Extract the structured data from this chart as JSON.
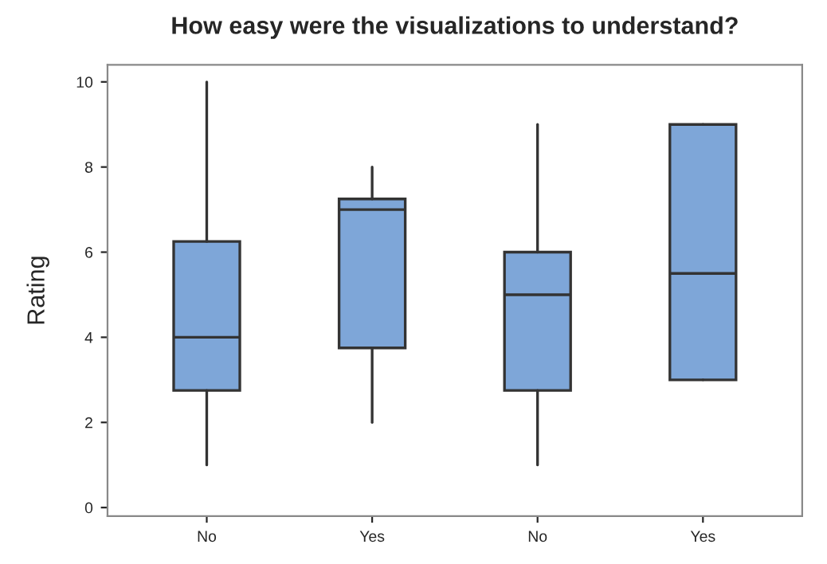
{
  "chart_data": {
    "type": "box",
    "title": "How easy were the visualizations to understand?",
    "ylabel": "Rating",
    "categories": [
      "No",
      "Yes",
      "No",
      "Yes"
    ],
    "boxes": [
      {
        "low": 1,
        "q1": 2.75,
        "median": 4,
        "q3": 6.25,
        "high": 10
      },
      {
        "low": 2,
        "q1": 3.75,
        "median": 7,
        "q3": 7.25,
        "high": 8
      },
      {
        "low": 1,
        "q1": 2.75,
        "median": 5,
        "q3": 6,
        "high": 9
      },
      {
        "low": 3,
        "q1": 3,
        "median": 5.5,
        "q3": 9,
        "high": 9
      }
    ],
    "color": "#7ea6d8",
    "ylim": [
      -0.2,
      10.4
    ],
    "yticks": [
      0,
      2,
      4,
      6,
      8,
      10
    ],
    "grid": false
  }
}
